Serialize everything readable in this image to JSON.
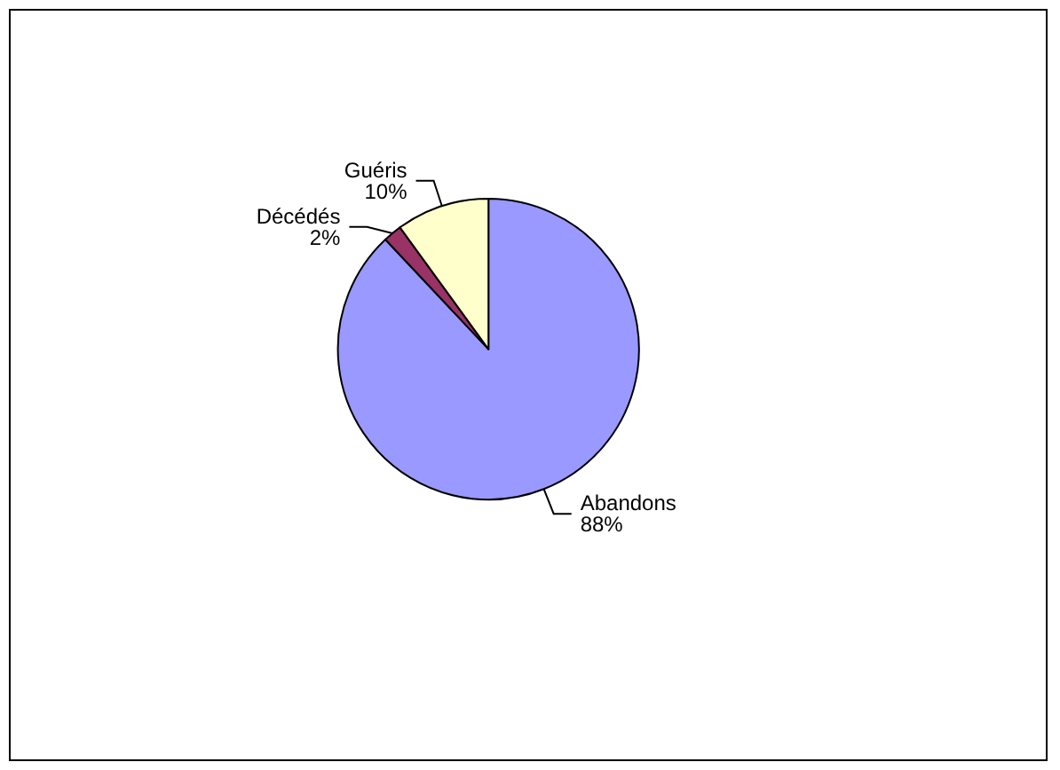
{
  "chart_data": {
    "type": "pie",
    "categories": [
      "Abandons",
      "Décédés",
      "Guéris"
    ],
    "values": [
      88,
      2,
      10
    ],
    "colors": [
      "#9999ff",
      "#993366",
      "#ffffcc"
    ],
    "value_labels": [
      "88%",
      "2%",
      "10%"
    ],
    "legend": false
  }
}
